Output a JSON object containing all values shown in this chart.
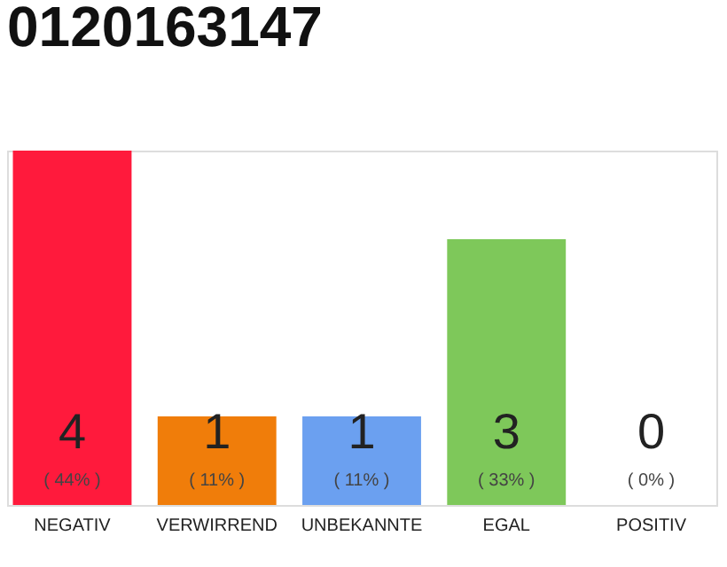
{
  "chart_data": {
    "type": "bar",
    "title": "0120163147",
    "categories": [
      "NEGATIV",
      "VERWIRREND",
      "UNBEKANNTE",
      "EGAL",
      "POSITIV"
    ],
    "values": [
      4,
      1,
      1,
      3,
      0
    ],
    "colors": [
      "#ff1a3c",
      "#f07d0a",
      "#6ba0f0",
      "#7ec85a",
      "#9e9e9e"
    ],
    "ylim": [
      0,
      4
    ],
    "tick_labels": "x",
    "grid": false,
    "legend": false,
    "data_labels": true,
    "annotations": [
      "( 44% )",
      "( 11% )",
      "( 11% )",
      "( 33% )",
      "( 0% )"
    ]
  }
}
